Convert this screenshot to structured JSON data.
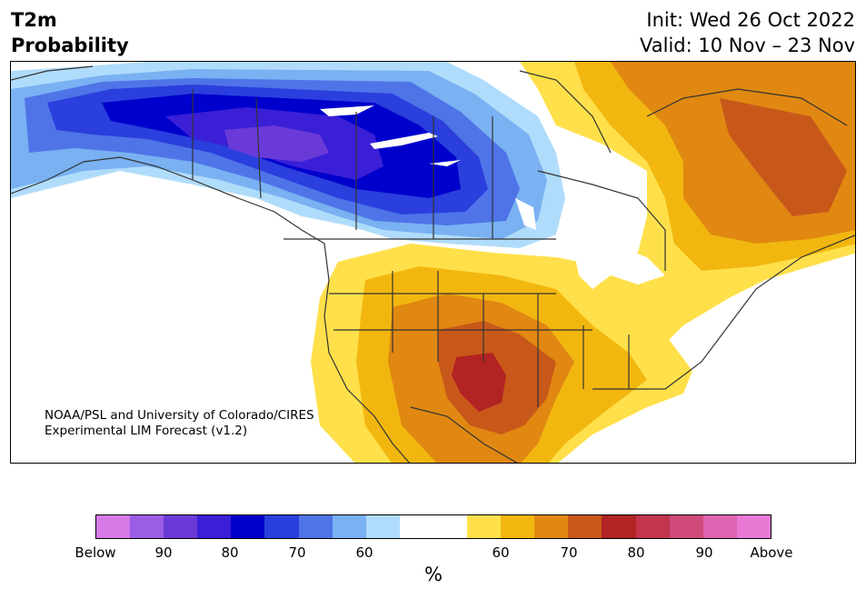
{
  "title": {
    "line1": "T2m",
    "line2": "Probability"
  },
  "dates": {
    "init": "Init: Wed 26 Oct 2022",
    "valid": "Valid: 10 Nov – 23 Nov"
  },
  "credit": {
    "line1": "NOAA/PSL and University of Colorado/CIRES",
    "line2": "Experimental LIM Forecast (v1.2)"
  },
  "colorbar": {
    "colors": [
      "#d77ae8",
      "#9b5de5",
      "#6a3ad8",
      "#3a1fd6",
      "#0000cd",
      "#2a3fdd",
      "#4f74e8",
      "#79b1f2",
      "#b0dcfb",
      "#ffffff",
      "#ffffff",
      "#ffe04a",
      "#f2b70f",
      "#e08812",
      "#c8581a",
      "#b22323",
      "#c2354c",
      "#cf4a7a",
      "#de63b0",
      "#e87ad6"
    ],
    "ticks": [
      "Below",
      "90",
      "80",
      "70",
      "60",
      "60",
      "70",
      "80",
      "90",
      "Above"
    ],
    "unit": "%"
  },
  "map_colors": {
    "below_90_plus": "#6a3ad8",
    "below_80": "#3a1fd6",
    "below_75": "#0000cd",
    "below_70": "#2a3fdd",
    "below_65": "#4f74e8",
    "below_60": "#79b1f2",
    "below_55": "#b0dcfb",
    "above_55": "#ffe04a",
    "above_60": "#f2b70f",
    "above_65": "#e08812",
    "above_70": "#c8581a",
    "above_75": "#b22323"
  }
}
